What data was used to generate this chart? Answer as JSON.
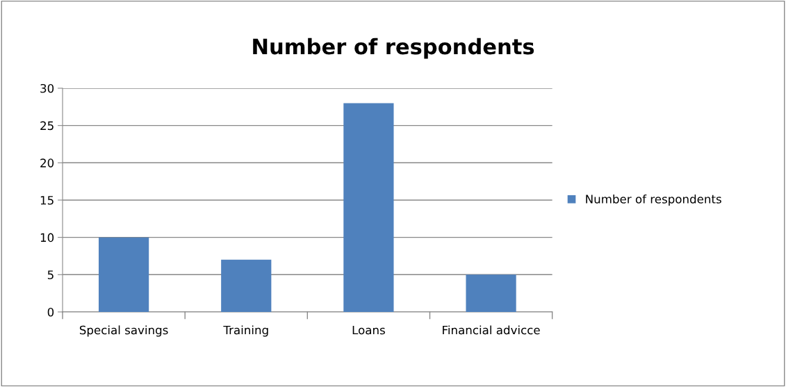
{
  "chart_data": {
    "type": "bar",
    "title": "Number of respondents",
    "categories": [
      "Special savings",
      "Training",
      "Loans",
      "Financial advicce"
    ],
    "series": [
      {
        "name": "Number of respondents",
        "color": "#4f81bd",
        "values": [
          10,
          7,
          28,
          5
        ]
      }
    ],
    "ylim": [
      0,
      30
    ],
    "yticks": [
      0,
      5,
      10,
      15,
      20,
      25,
      30
    ],
    "grid": "y",
    "legend": "right"
  }
}
